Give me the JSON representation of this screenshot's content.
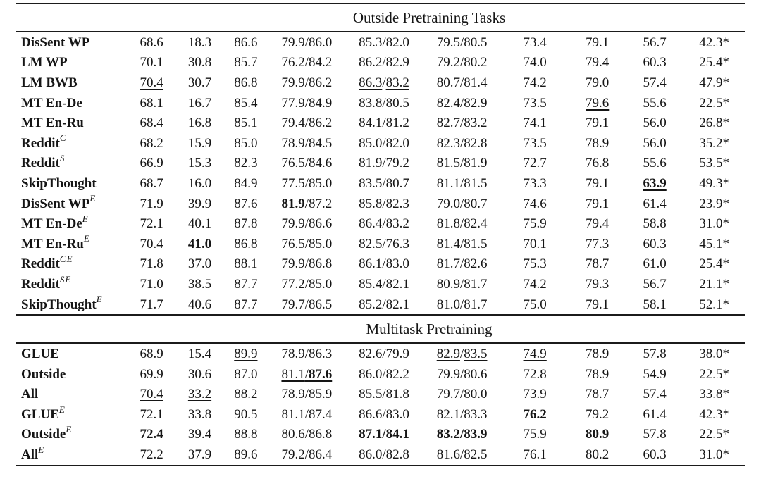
{
  "table": {
    "sections": [
      {
        "title": "Outside Pretraining Tasks",
        "rows": [
          {
            "label": "DisSent WP",
            "sup": "",
            "cells": [
              "68.6",
              "18.3",
              "86.6",
              "79.9/86.0",
              "85.3/82.0",
              "79.5/80.5",
              "73.4",
              "79.1",
              "56.7",
              "42.3*"
            ]
          },
          {
            "label": "LM WP",
            "sup": "",
            "cells": [
              "70.1",
              "30.8",
              "85.7",
              "76.2/84.2",
              "86.2/82.9",
              "79.2/80.2",
              "74.0",
              "79.4",
              "60.3",
              "25.4*"
            ]
          },
          {
            "label": "LM BWB",
            "sup": "",
            "cells": [
              [
                {
                  "t": "70.4",
                  "u": true
                }
              ],
              "30.7",
              "86.8",
              "79.9/86.2",
              [
                {
                  "t": "86.3",
                  "u": true
                },
                {
                  "t": "/"
                },
                {
                  "t": "83.2",
                  "u": true
                }
              ],
              "80.7/81.4",
              "74.2",
              "79.0",
              "57.4",
              "47.9*"
            ]
          },
          {
            "label": "MT En-De",
            "sup": "",
            "cells": [
              "68.1",
              "16.7",
              "85.4",
              "77.9/84.9",
              "83.8/80.5",
              "82.4/82.9",
              "73.5",
              [
                {
                  "t": "79.6",
                  "u": true
                }
              ],
              "55.6",
              "22.5*"
            ]
          },
          {
            "label": "MT En-Ru",
            "sup": "",
            "cells": [
              "68.4",
              "16.8",
              "85.1",
              "79.4/86.2",
              "84.1/81.2",
              "82.7/83.2",
              "74.1",
              "79.1",
              "56.0",
              "26.8*"
            ]
          },
          {
            "label": "Reddit",
            "sup": "C",
            "cells": [
              "68.2",
              "15.9",
              "85.0",
              "78.9/84.5",
              "85.0/82.0",
              "82.3/82.8",
              "73.5",
              "78.9",
              "56.0",
              "35.2*"
            ]
          },
          {
            "label": "Reddit",
            "sup": "S",
            "cells": [
              "66.9",
              "15.3",
              "82.3",
              "76.5/84.6",
              "81.9/79.2",
              "81.5/81.9",
              "72.7",
              "76.8",
              "55.6",
              "53.5*"
            ]
          },
          {
            "label": "SkipThought",
            "sup": "",
            "cells": [
              "68.7",
              "16.0",
              "84.9",
              "77.5/85.0",
              "83.5/80.7",
              "81.1/81.5",
              "73.3",
              "79.1",
              [
                {
                  "t": "63.9",
                  "b": true,
                  "u": true
                }
              ],
              "49.3*"
            ]
          },
          {
            "label": "DisSent WP",
            "sup": "E",
            "cells": [
              "71.9",
              "39.9",
              "87.6",
              [
                {
                  "t": "81.9",
                  "b": true
                },
                {
                  "t": "/87.2"
                }
              ],
              "85.8/82.3",
              "79.0/80.7",
              "74.6",
              "79.1",
              "61.4",
              "23.9*"
            ]
          },
          {
            "label": "MT En-De",
            "sup": "E",
            "cells": [
              "72.1",
              "40.1",
              "87.8",
              "79.9/86.6",
              "86.4/83.2",
              "81.8/82.4",
              "75.9",
              "79.4",
              "58.8",
              "31.0*"
            ]
          },
          {
            "label": "MT En-Ru",
            "sup": "E",
            "cells": [
              "70.4",
              [
                {
                  "t": "41.0",
                  "b": true
                }
              ],
              "86.8",
              "76.5/85.0",
              "82.5/76.3",
              "81.4/81.5",
              "70.1",
              "77.3",
              "60.3",
              "45.1*"
            ]
          },
          {
            "label": "Reddit",
            "sup": "CE",
            "cells": [
              "71.8",
              "37.0",
              "88.1",
              "79.9/86.8",
              "86.1/83.0",
              "81.7/82.6",
              "75.3",
              "78.7",
              "61.0",
              "25.4*"
            ]
          },
          {
            "label": "Reddit",
            "sup": "SE",
            "cells": [
              "71.0",
              "38.5",
              "87.7",
              "77.2/85.0",
              "85.4/82.1",
              "80.9/81.7",
              "74.2",
              "79.3",
              "56.7",
              "21.1*"
            ]
          },
          {
            "label": "SkipThought",
            "sup": "E",
            "cells": [
              "71.7",
              "40.6",
              "87.7",
              "79.7/86.5",
              "85.2/82.1",
              "81.0/81.7",
              "75.0",
              "79.1",
              "58.1",
              "52.1*"
            ]
          }
        ]
      },
      {
        "title": "Multitask Pretraining",
        "rows": [
          {
            "label": "GLUE",
            "sup": "",
            "cells": [
              "68.9",
              "15.4",
              [
                {
                  "t": "89.9",
                  "u": true
                }
              ],
              "78.9/86.3",
              "82.6/79.9",
              [
                {
                  "t": "82.9",
                  "u": true
                },
                {
                  "t": "/"
                },
                {
                  "t": "83.5",
                  "u": true
                }
              ],
              [
                {
                  "t": "74.9",
                  "u": true
                }
              ],
              "78.9",
              "57.8",
              "38.0*"
            ]
          },
          {
            "label": "Outside",
            "sup": "",
            "cells": [
              "69.9",
              "30.6",
              "87.0",
              [
                {
                  "t": "81.1",
                  "u": true
                },
                {
                  "t": "/",
                  "u": true
                },
                {
                  "t": "87.6",
                  "b": true,
                  "u": true
                }
              ],
              "86.0/82.2",
              "79.9/80.6",
              "72.8",
              "78.9",
              "54.9",
              "22.5*"
            ]
          },
          {
            "label": "All",
            "sup": "",
            "cells": [
              [
                {
                  "t": "70.4",
                  "u": true
                }
              ],
              [
                {
                  "t": "33.2",
                  "u": true
                }
              ],
              "88.2",
              "78.9/85.9",
              "85.5/81.8",
              "79.7/80.0",
              "73.9",
              "78.7",
              "57.4",
              "33.8*"
            ]
          },
          {
            "label": "GLUE",
            "sup": "E",
            "cells": [
              "72.1",
              "33.8",
              "90.5",
              "81.1/87.4",
              "86.6/83.0",
              "82.1/83.3",
              [
                {
                  "t": "76.2",
                  "b": true
                }
              ],
              "79.2",
              "61.4",
              "42.3*"
            ]
          },
          {
            "label": "Outside",
            "sup": "E",
            "cells": [
              [
                {
                  "t": "72.4",
                  "b": true
                }
              ],
              "39.4",
              "88.8",
              "80.6/86.8",
              [
                {
                  "t": "87.1/84.1",
                  "b": true
                }
              ],
              [
                {
                  "t": "83.2/83.9",
                  "b": true
                }
              ],
              "75.9",
              [
                {
                  "t": "80.9",
                  "b": true
                }
              ],
              "57.8",
              "22.5*"
            ]
          },
          {
            "label": "All",
            "sup": "E",
            "cells": [
              "72.2",
              "37.9",
              "89.6",
              "79.2/86.4",
              "86.0/82.8",
              "81.6/82.5",
              "76.1",
              "80.2",
              "60.3",
              "31.0*"
            ]
          }
        ]
      }
    ],
    "text_color": "#151515",
    "rule_color": "#1b1b1b",
    "background": "#ffffff"
  }
}
